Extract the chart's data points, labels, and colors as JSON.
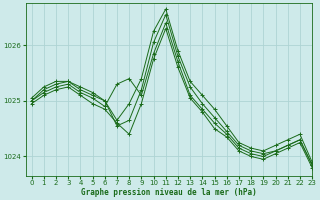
{
  "title": "Graphe pression niveau de la mer (hPa)",
  "background_color": "#ceeaea",
  "grid_color": "#aed4d4",
  "line_color": "#1a6b1a",
  "xlim": [
    -0.5,
    23
  ],
  "ylim": [
    1023.65,
    1026.75
  ],
  "yticks": [
    1024,
    1025,
    1026
  ],
  "xticks": [
    0,
    1,
    2,
    3,
    4,
    5,
    6,
    7,
    8,
    9,
    10,
    11,
    12,
    13,
    14,
    15,
    16,
    17,
    18,
    19,
    20,
    21,
    22,
    23
  ],
  "series": [
    [
      1025.0,
      1025.2,
      1025.3,
      1025.35,
      1025.25,
      1025.15,
      1025.0,
      1024.65,
      1024.95,
      1025.4,
      1026.25,
      1026.65,
      1025.9,
      1025.35,
      1025.1,
      1024.85,
      1024.55,
      1024.25,
      1024.15,
      1024.1,
      1024.2,
      1024.3,
      1024.4,
      1023.9
    ],
    [
      1025.05,
      1025.25,
      1025.35,
      1025.35,
      1025.2,
      1025.1,
      1025.0,
      1024.55,
      1024.65,
      1025.2,
      1026.05,
      1026.55,
      1025.8,
      1025.25,
      1024.95,
      1024.7,
      1024.45,
      1024.2,
      1024.1,
      1024.05,
      1024.1,
      1024.2,
      1024.3,
      1023.85
    ],
    [
      1025.0,
      1025.15,
      1025.25,
      1025.3,
      1025.15,
      1025.05,
      1024.9,
      1025.3,
      1025.4,
      1025.1,
      1025.85,
      1026.4,
      1025.7,
      1025.1,
      1024.85,
      1024.6,
      1024.4,
      1024.15,
      1024.05,
      1024.0,
      1024.1,
      1024.2,
      1024.3,
      1023.85
    ],
    [
      1024.95,
      1025.1,
      1025.2,
      1025.25,
      1025.1,
      1024.95,
      1024.85,
      1024.6,
      1024.4,
      1024.95,
      1025.75,
      1026.3,
      1025.6,
      1025.05,
      1024.8,
      1024.5,
      1024.35,
      1024.1,
      1024.0,
      1023.95,
      1024.05,
      1024.15,
      1024.25,
      1023.8
    ]
  ]
}
